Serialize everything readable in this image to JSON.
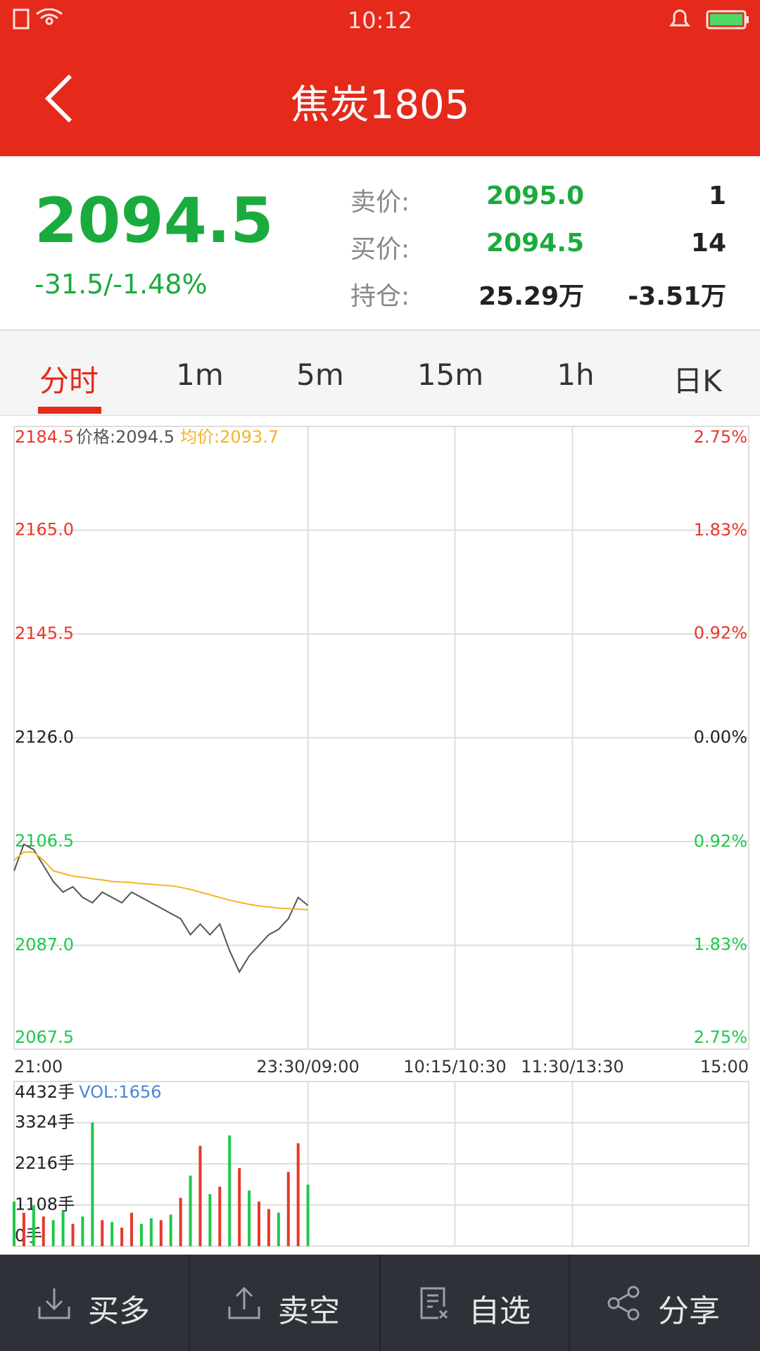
{
  "status_bar": {
    "time": "10:12"
  },
  "header": {
    "title": "焦炭1805"
  },
  "quote": {
    "price": "2094.5",
    "change": "-31.5/-1.48%",
    "rows": [
      [
        "卖价:",
        "2095.0",
        "1"
      ],
      [
        "买价:",
        "2094.5",
        "14"
      ],
      [
        "持仓:",
        "25.29万",
        "-3.51万"
      ]
    ]
  },
  "tabs": [
    "分时",
    "1m",
    "5m",
    "15m",
    "1h",
    "日K"
  ],
  "chart_data": [
    {
      "type": "line",
      "x": [
        0,
        5,
        10,
        15,
        20,
        25,
        30,
        35,
        40,
        45,
        50,
        55,
        60,
        65,
        70,
        75,
        80,
        85,
        90,
        95,
        100,
        105,
        110,
        115,
        120,
        125,
        130,
        135,
        140,
        145,
        150
      ],
      "series": [
        {
          "name": "价格:2094.5",
          "color": "#555555",
          "values": [
            2101,
            2106,
            2105,
            2102,
            2099,
            2097,
            2098,
            2096,
            2095,
            2097,
            2096,
            2095,
            2097,
            2096,
            2095,
            2094,
            2093,
            2092,
            2089,
            2091,
            2089,
            2091,
            2086,
            2082,
            2085,
            2087,
            2089,
            2090,
            2092,
            2096,
            2094.5
          ]
        },
        {
          "name": "均价:2093.7",
          "color": "#f5b324",
          "values": [
            2103,
            2104.5,
            2104.5,
            2103,
            2101,
            2100.5,
            2100,
            2099.8,
            2099.5,
            2099.3,
            2099,
            2098.9,
            2098.8,
            2098.6,
            2098.5,
            2098.3,
            2098.2,
            2097.9,
            2097.5,
            2097,
            2096.5,
            2096,
            2095.5,
            2095.1,
            2094.7,
            2094.4,
            2094.2,
            2094,
            2093.9,
            2093.8,
            2093.7
          ]
        }
      ],
      "xlim": [
        0,
        375
      ],
      "xticks": [
        {
          "value": 0,
          "label": "21:00"
        },
        {
          "value": 150,
          "label": "23:30/09:00"
        },
        {
          "value": 225,
          "label": "10:15/10:30"
        },
        {
          "value": 285,
          "label": "11:30/13:30"
        },
        {
          "value": 375,
          "label": "15:00"
        }
      ],
      "ylim": [
        2067.5,
        2184.5
      ],
      "yticks": [
        2184.5,
        {
          "value": 2165,
          "label": "2165.0"
        },
        2145.5,
        {
          "value": 2126,
          "label": "2126.0"
        },
        2106.5,
        {
          "value": 2087,
          "label": "2087.0"
        },
        2067.5
      ],
      "y2lim": [
        -2.75,
        2.75
      ],
      "y2ticks": [
        {
          "value": 2.75,
          "label": "2.75%"
        },
        {
          "value": 1.83,
          "label": "1.83%"
        },
        {
          "value": 0.92,
          "label": "0.92%"
        },
        {
          "value": 0,
          "label": "0.00%"
        },
        {
          "value": -0.92,
          "label": "0.92%"
        },
        {
          "value": -1.83,
          "label": "1.83%"
        },
        {
          "value": -2.75,
          "label": "2.75%"
        }
      ],
      "grid": true
    },
    {
      "type": "bar",
      "x": [
        0,
        5,
        10,
        15,
        20,
        25,
        30,
        35,
        40,
        45,
        50,
        55,
        60,
        65,
        70,
        75,
        80,
        85,
        90,
        95,
        100,
        105,
        110,
        115,
        120,
        125,
        130,
        135,
        140,
        145,
        150
      ],
      "series": [
        {
          "name": "VOL:1656",
          "color": "#4a86d8",
          "values": [
            1200,
            900,
            1100,
            800,
            700,
            950,
            600,
            800,
            3330,
            700,
            650,
            500,
            900,
            600,
            750,
            700,
            850,
            1300,
            1900,
            2700,
            1400,
            1600,
            2980,
            2100,
            1500,
            1200,
            1000,
            900,
            2000,
            2770,
            1656
          ],
          "colors": [
            "#1ec84a",
            "#e8372a",
            "#1ec84a",
            "#e8372a",
            "#1ec84a",
            "#1ec84a",
            "#e8372a",
            "#1ec84a",
            "#1ec84a",
            "#e8372a",
            "#1ec84a",
            "#e8372a",
            "#e8372a",
            "#1ec84a",
            "#1ec84a",
            "#e8372a",
            "#1ec84a",
            "#e8372a",
            "#1ec84a",
            "#e8372a",
            "#1ec84a",
            "#e8372a",
            "#1ec84a",
            "#e8372a",
            "#1ec84a",
            "#e8372a",
            "#e8372a",
            "#1ec84a",
            "#e8372a",
            "#e8372a",
            "#1ec84a"
          ]
        }
      ],
      "ylim": [
        0,
        4432
      ],
      "yticks": [
        {
          "value": 0,
          "label": "0手"
        },
        {
          "value": 1108,
          "label": "1108手"
        },
        {
          "value": 2216,
          "label": "2216手"
        },
        {
          "value": 3324,
          "label": "3324手"
        },
        {
          "value": 4432,
          "label": "4432手"
        }
      ],
      "grid": true
    }
  ],
  "toolbar": [
    "买多",
    "卖空",
    "自选",
    "分享"
  ]
}
